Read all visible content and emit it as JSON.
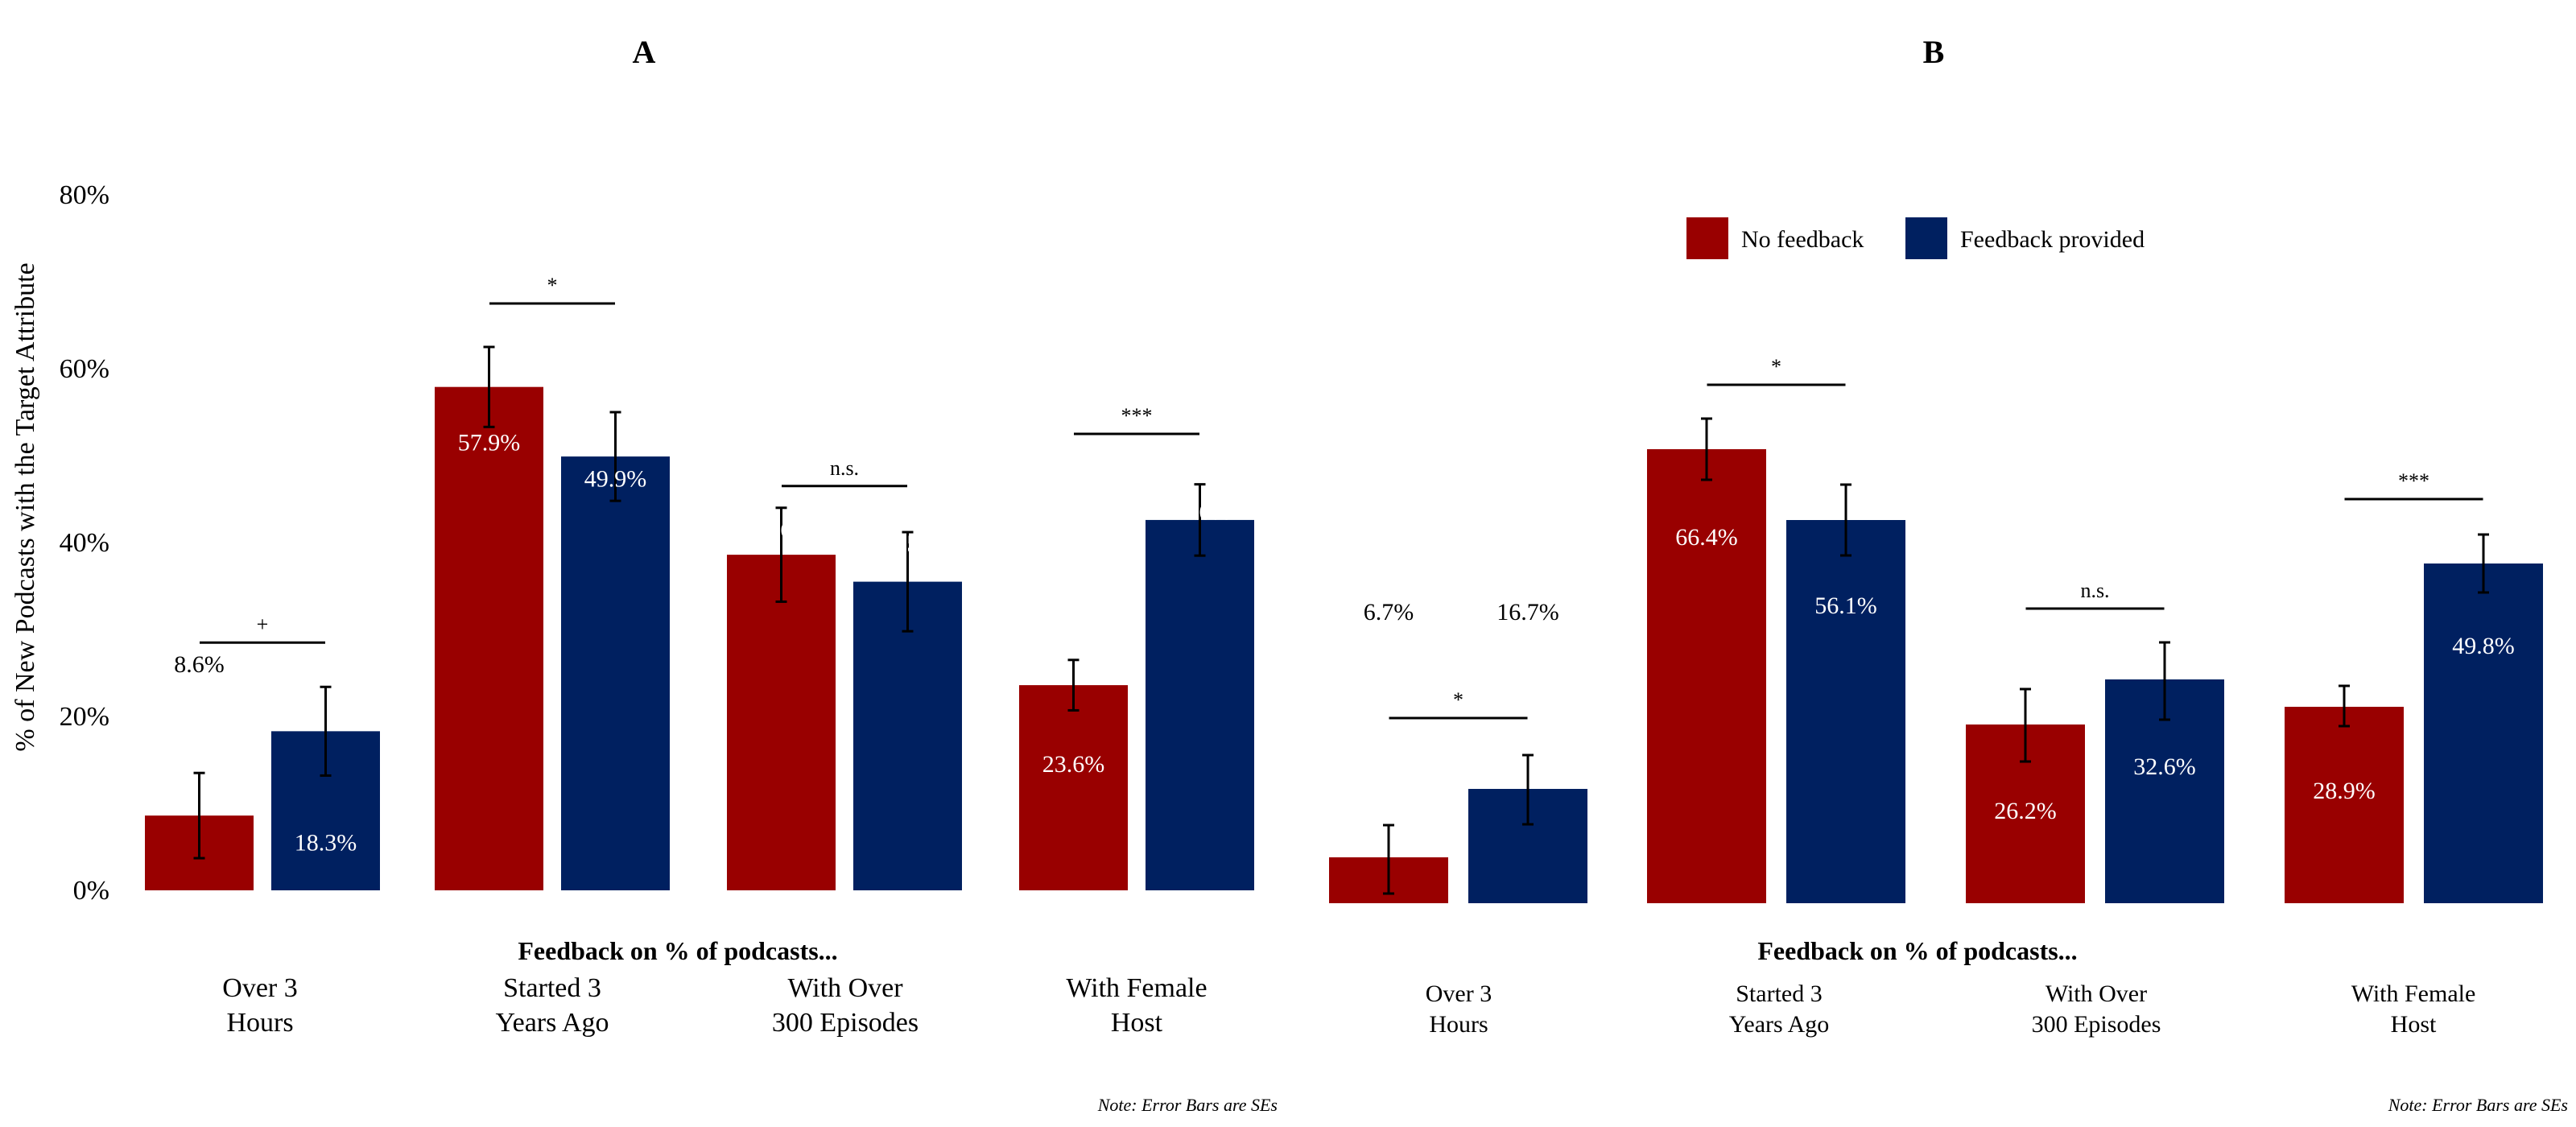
{
  "colors": {
    "no_feedback": "#990000",
    "feedback": "#002060",
    "text": "#000000",
    "bar_label": "#ffffff"
  },
  "legend": {
    "items": [
      "No feedback",
      "Feedback provided"
    ],
    "placement": "top-right of panel B"
  },
  "ylabel": "% of New Podcasts with the Target Attribute",
  "chart_data": [
    {
      "type": "bar",
      "title": "A",
      "xlabel": "Feedback on % of podcasts...",
      "ylim": [
        0,
        80
      ],
      "yticks": [
        "0%",
        "20%",
        "40%",
        "60%",
        "80%"
      ],
      "ytick_values": [
        0,
        20,
        40,
        60,
        80
      ],
      "categories": [
        "Over 3\nHours",
        "Started 3\nYears Ago",
        "With Over\n300 Episodes",
        "With Female\nHost"
      ],
      "series": [
        {
          "name": "No feedback",
          "values": [
            8.6,
            57.9,
            38.6,
            23.6
          ],
          "se": [
            4.9,
            4.6,
            5.4,
            2.9
          ],
          "labels": [
            "8.6%",
            "57.9%",
            "38.6%",
            "23.6%"
          ]
        },
        {
          "name": "Feedback provided",
          "values": [
            18.3,
            49.9,
            35.5,
            42.6
          ],
          "se": [
            5.1,
            5.1,
            5.7,
            4.1
          ],
          "labels": [
            "18.3%",
            "49.9%",
            "35.5%",
            "42.6%"
          ]
        }
      ],
      "significance": [
        "+",
        "*",
        "n.s.",
        "***"
      ],
      "significance_levels": [
        28.5,
        67.5,
        46.5,
        52.5
      ],
      "note": "Note: Error Bars are SEs"
    },
    {
      "type": "bar",
      "title": "B",
      "xlabel": "Feedback on % of podcasts...",
      "categories": [
        "Over 3\nHours",
        "Started 3\nYears Ago",
        "With Over\n300 Episodes",
        "With Female\nHost"
      ],
      "series": [
        {
          "name": "No feedback",
          "values": [
            6.7,
            66.4,
            26.2,
            28.9
          ],
          "labels": [
            "6.7%",
            "66.4%",
            "26.2%",
            "28.9%"
          ]
        },
        {
          "name": "Feedback provided",
          "values": [
            16.7,
            56.1,
            32.6,
            49.8
          ],
          "labels": [
            "16.7%",
            "56.1%",
            "32.6%",
            "49.8%"
          ]
        }
      ],
      "significance": [
        "*",
        "*",
        "n.s.",
        "***"
      ],
      "note": "Note: Error Bars are SEs"
    }
  ]
}
